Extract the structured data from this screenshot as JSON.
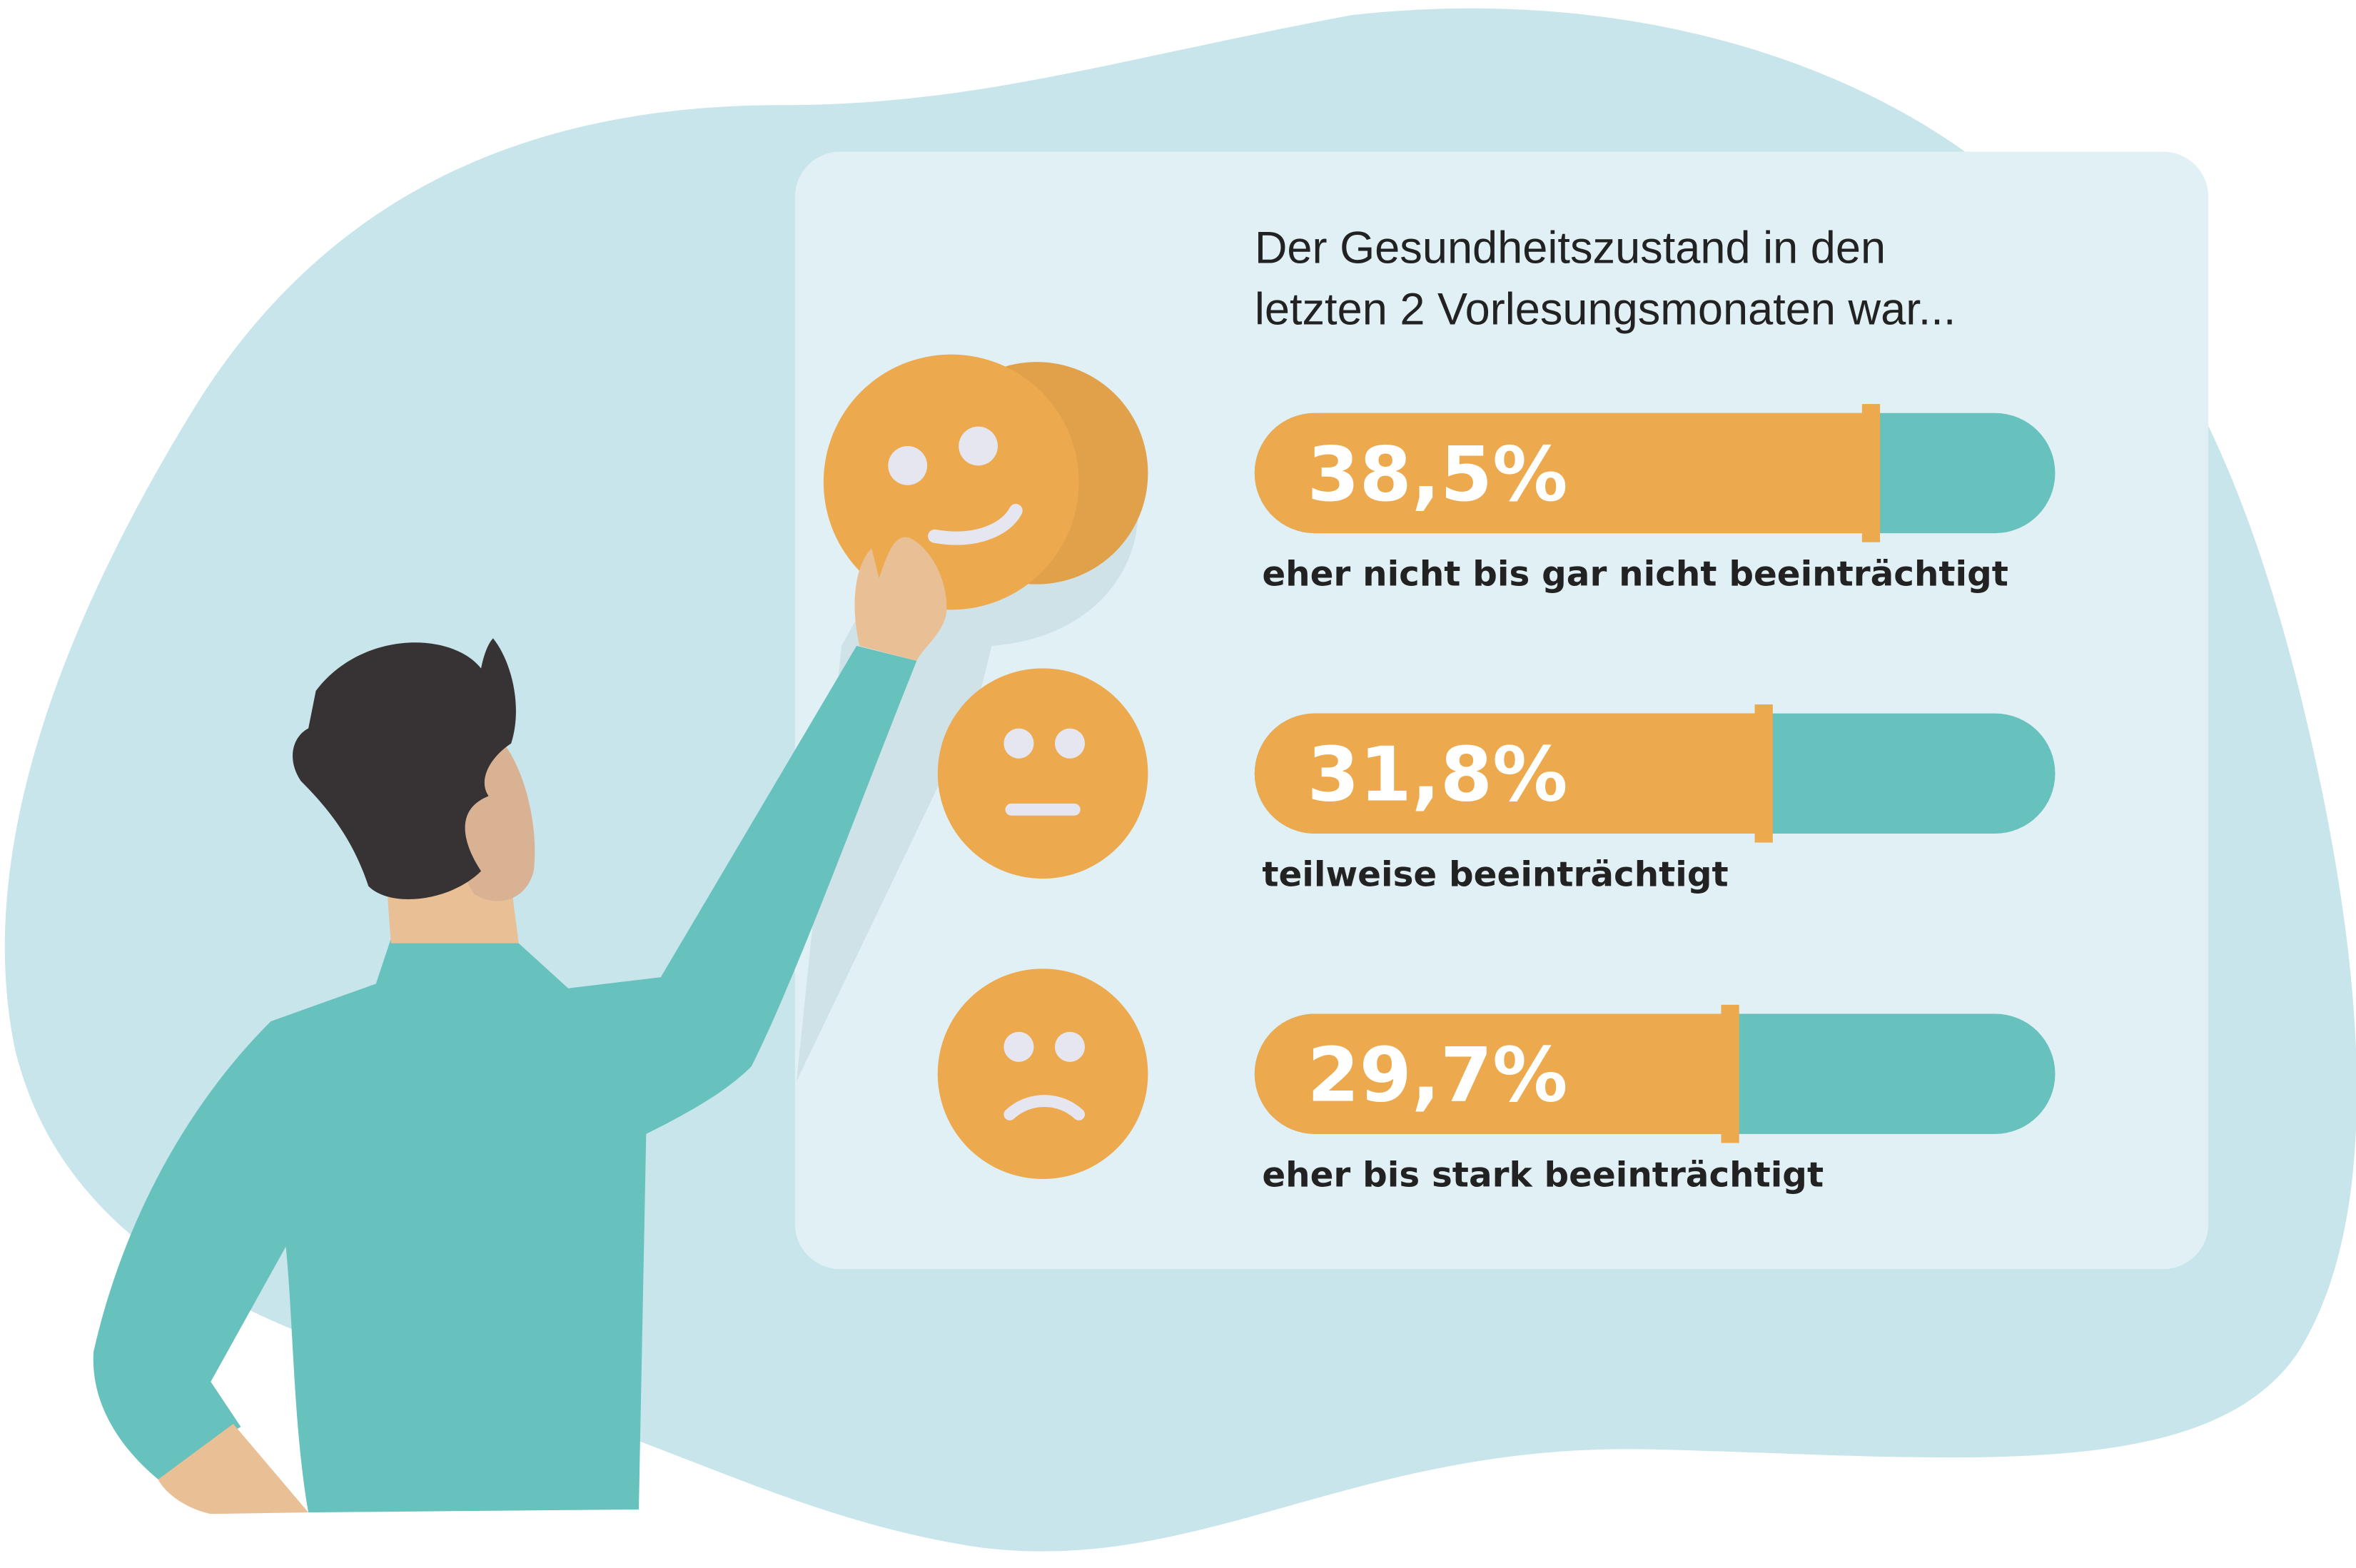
{
  "chart_data": {
    "type": "bar",
    "orientation": "horizontal",
    "title": [
      "Der Gesundheitszustand in den",
      "letzten 2 Vorlesungsmonaten war..."
    ],
    "categories": [
      "eher nicht bis gar nicht beeinträchtigt",
      "teilweise beeinträchtigt",
      "eher bis stark beeinträchtigt"
    ],
    "values": [
      38.5,
      31.8,
      29.7
    ],
    "value_labels": [
      "38,5%",
      "31,8%",
      "29,7%"
    ],
    "color": "#eca94e",
    "track_color": "#67c1bd",
    "xlim": [
      0,
      50
    ]
  }
}
